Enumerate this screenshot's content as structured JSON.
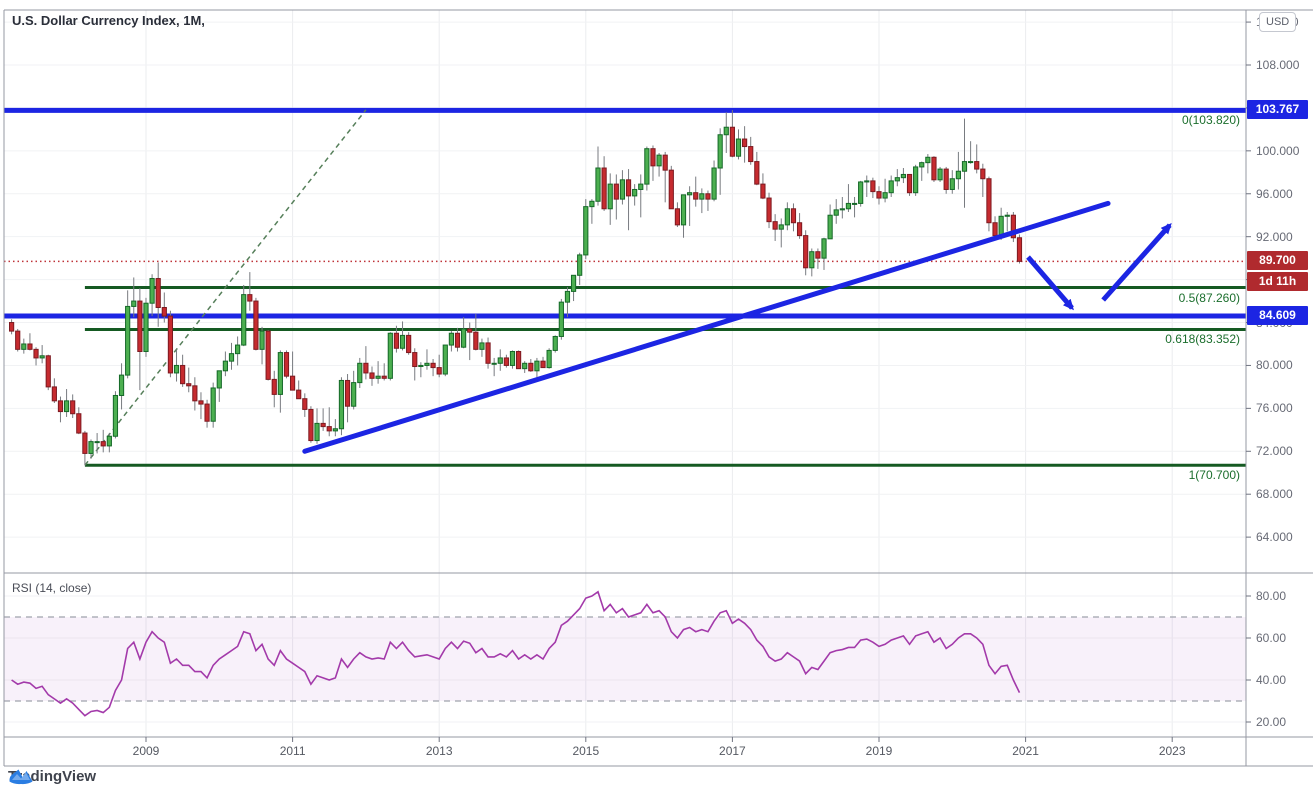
{
  "app": {
    "logo_label": "TradingView"
  },
  "chart": {
    "title": "U.S. Dollar Currency Index, 1M,"
  },
  "rsi": {
    "label": "RSI (14, close)"
  },
  "price_axis": {
    "currency_button": "USD",
    "ticks": [
      112,
      108,
      104,
      100,
      96,
      92,
      88,
      84,
      80,
      76,
      72,
      68,
      64
    ],
    "last_price_label": "89.700",
    "countdown": "1d 11h",
    "level_badges": [
      "103.767",
      "84.609"
    ]
  },
  "time_axis": {
    "tick_years": [
      2009,
      2011,
      2013,
      2015,
      2017,
      2019,
      2021,
      2023
    ]
  },
  "rsi_axis": {
    "ticks": [
      80,
      60,
      40,
      20
    ]
  },
  "colors": {
    "accent_blue": "#1c25e3",
    "badge_red": "#b02a2e",
    "last_price_red": "#bf3338",
    "bull_fill": "#4caf50",
    "bull_border": "#156928",
    "bear_fill": "#c62b2f",
    "bear_border": "#7d1a21",
    "wick": "#787b80",
    "fib_green": "#155a22",
    "dashed_trend_green": "#567f5a",
    "rsi_purple": "#a33aaa",
    "rsi_band_fill": "rgba(167,77,185,0.08)",
    "band_border_gray": "#9fa2ac",
    "grid_v": "#ebecef",
    "grid_h": "#f1f2f4",
    "frame_gray": "#9598a3",
    "tick_gray": "#6f7380",
    "logo_blue": "#2a7de2"
  },
  "chart_data": {
    "type": "candlestick",
    "title": "U.S. Dollar Currency Index",
    "interval": "1M",
    "start": "2007-03",
    "price_axis_range": [
      62,
      113
    ],
    "candles": [
      [
        84.0,
        84.3,
        82.9,
        83.2
      ],
      [
        83.2,
        83.4,
        81.3,
        81.5
      ],
      [
        81.5,
        82.5,
        81.1,
        82.0
      ],
      [
        82.0,
        83.0,
        81.4,
        81.5
      ],
      [
        81.5,
        81.7,
        80.0,
        80.7
      ],
      [
        80.7,
        81.9,
        80.2,
        80.9
      ],
      [
        80.9,
        81.0,
        77.7,
        78.0
      ],
      [
        78.0,
        78.8,
        76.5,
        76.7
      ],
      [
        76.7,
        77.1,
        74.7,
        75.7
      ],
      [
        75.7,
        77.8,
        75.2,
        76.7
      ],
      [
        76.7,
        77.3,
        75.1,
        75.5
      ],
      [
        75.5,
        76.1,
        73.6,
        73.7
      ],
      [
        73.7,
        73.9,
        70.7,
        71.8
      ],
      [
        71.8,
        73.1,
        71.3,
        72.9
      ],
      [
        72.9,
        73.7,
        71.8,
        72.9
      ],
      [
        72.9,
        74.0,
        71.9,
        72.5
      ],
      [
        72.5,
        73.7,
        71.9,
        73.4
      ],
      [
        73.4,
        77.6,
        73.2,
        77.2
      ],
      [
        77.2,
        80.2,
        75.9,
        79.1
      ],
      [
        79.1,
        87.0,
        78.8,
        85.5
      ],
      [
        85.5,
        88.2,
        84.5,
        86.0
      ],
      [
        86.0,
        87.2,
        77.7,
        81.3
      ],
      [
        81.3,
        86.3,
        80.8,
        85.8
      ],
      [
        85.8,
        88.5,
        84.6,
        88.1
      ],
      [
        88.1,
        89.6,
        83.6,
        85.4
      ],
      [
        85.4,
        86.8,
        84.0,
        84.6
      ],
      [
        84.6,
        85.1,
        78.9,
        79.3
      ],
      [
        79.3,
        81.5,
        78.5,
        80.0
      ],
      [
        80.0,
        81.0,
        78.0,
        78.3
      ],
      [
        78.3,
        79.8,
        77.5,
        78.1
      ],
      [
        78.1,
        78.9,
        75.8,
        76.7
      ],
      [
        76.7,
        77.5,
        75.0,
        76.4
      ],
      [
        76.4,
        76.8,
        74.2,
        74.8
      ],
      [
        74.8,
        78.4,
        74.2,
        77.9
      ],
      [
        77.9,
        79.5,
        76.6,
        79.5
      ],
      [
        79.5,
        81.3,
        79.0,
        80.4
      ],
      [
        80.4,
        82.1,
        79.6,
        81.1
      ],
      [
        81.1,
        82.7,
        80.0,
        81.9
      ],
      [
        81.9,
        87.5,
        81.8,
        86.6
      ],
      [
        86.6,
        88.7,
        85.1,
        86.0
      ],
      [
        86.0,
        86.3,
        81.4,
        81.5
      ],
      [
        81.5,
        83.6,
        80.1,
        83.2
      ],
      [
        83.2,
        83.3,
        78.6,
        78.7
      ],
      [
        78.7,
        79.5,
        76.1,
        77.3
      ],
      [
        77.3,
        81.4,
        75.6,
        81.2
      ],
      [
        81.2,
        81.4,
        78.8,
        79.0
      ],
      [
        79.0,
        81.3,
        77.7,
        77.7
      ],
      [
        77.7,
        78.6,
        76.9,
        76.9
      ],
      [
        76.9,
        77.4,
        75.2,
        75.9
      ],
      [
        75.9,
        76.2,
        72.8,
        73.0
      ],
      [
        73.0,
        76.0,
        72.7,
        74.6
      ],
      [
        74.6,
        76.0,
        73.9,
        74.3
      ],
      [
        74.3,
        76.1,
        73.4,
        73.9
      ],
      [
        73.9,
        75.0,
        73.4,
        74.1
      ],
      [
        74.1,
        78.9,
        73.5,
        78.6
      ],
      [
        78.6,
        79.2,
        74.7,
        76.2
      ],
      [
        76.2,
        79.5,
        75.9,
        78.4
      ],
      [
        78.4,
        80.7,
        77.9,
        80.2
      ],
      [
        80.2,
        81.8,
        78.7,
        79.3
      ],
      [
        79.3,
        79.9,
        78.1,
        78.8
      ],
      [
        78.8,
        80.4,
        78.3,
        79.0
      ],
      [
        79.0,
        80.2,
        78.6,
        78.8
      ],
      [
        78.8,
        83.1,
        78.6,
        83.0
      ],
      [
        83.0,
        83.7,
        81.2,
        81.6
      ],
      [
        81.6,
        84.1,
        81.4,
        82.8
      ],
      [
        82.8,
        83.1,
        81.0,
        81.2
      ],
      [
        81.2,
        81.6,
        78.6,
        79.9
      ],
      [
        79.9,
        80.3,
        78.9,
        80.0
      ],
      [
        80.0,
        81.5,
        79.6,
        80.2
      ],
      [
        80.2,
        80.6,
        79.0,
        79.8
      ],
      [
        79.8,
        81.0,
        78.9,
        79.2
      ],
      [
        79.2,
        81.9,
        79.0,
        81.9
      ],
      [
        81.9,
        83.2,
        81.3,
        83.0
      ],
      [
        83.0,
        83.5,
        81.3,
        81.7
      ],
      [
        81.7,
        84.5,
        81.6,
        83.4
      ],
      [
        83.4,
        84.0,
        80.5,
        83.1
      ],
      [
        83.1,
        84.8,
        81.4,
        81.5
      ],
      [
        81.5,
        82.5,
        80.8,
        82.1
      ],
      [
        82.1,
        82.6,
        79.7,
        80.2
      ],
      [
        80.2,
        80.7,
        79.0,
        80.2
      ],
      [
        80.2,
        81.5,
        79.5,
        80.7
      ],
      [
        80.7,
        81.0,
        79.8,
        80.0
      ],
      [
        80.0,
        81.4,
        79.7,
        81.3
      ],
      [
        81.3,
        81.4,
        79.7,
        79.7
      ],
      [
        79.7,
        80.4,
        79.3,
        80.2
      ],
      [
        80.2,
        80.6,
        79.4,
        79.5
      ],
      [
        79.5,
        80.7,
        78.9,
        80.4
      ],
      [
        80.4,
        80.8,
        79.8,
        79.8
      ],
      [
        79.8,
        81.6,
        79.7,
        81.4
      ],
      [
        81.4,
        82.8,
        81.2,
        82.7
      ],
      [
        82.7,
        86.2,
        82.4,
        85.9
      ],
      [
        85.9,
        87.3,
        84.5,
        86.9
      ],
      [
        86.9,
        88.4,
        86.0,
        88.4
      ],
      [
        88.4,
        90.5,
        87.5,
        90.3
      ],
      [
        90.3,
        95.5,
        89.9,
        94.8
      ],
      [
        94.8,
        95.5,
        93.2,
        95.3
      ],
      [
        95.3,
        100.4,
        94.9,
        98.4
      ],
      [
        98.4,
        99.5,
        94.4,
        94.6
      ],
      [
        94.6,
        97.9,
        93.1,
        96.9
      ],
      [
        96.9,
        97.8,
        93.6,
        95.5
      ],
      [
        95.5,
        98.2,
        95.0,
        97.3
      ],
      [
        97.3,
        98.3,
        92.6,
        95.8
      ],
      [
        95.8,
        96.9,
        94.9,
        96.4
      ],
      [
        96.4,
        97.8,
        93.8,
        96.9
      ],
      [
        96.9,
        100.4,
        96.3,
        100.2
      ],
      [
        100.2,
        100.5,
        97.2,
        98.6
      ],
      [
        98.6,
        99.8,
        97.6,
        99.6
      ],
      [
        99.6,
        99.9,
        95.2,
        98.2
      ],
      [
        98.2,
        98.6,
        94.6,
        94.6
      ],
      [
        94.6,
        95.2,
        92.9,
        93.1
      ],
      [
        93.1,
        95.9,
        91.9,
        95.9
      ],
      [
        95.9,
        96.7,
        93.0,
        96.1
      ],
      [
        96.1,
        97.6,
        94.8,
        95.5
      ],
      [
        95.5,
        96.5,
        94.2,
        96.0
      ],
      [
        96.0,
        96.3,
        94.4,
        95.5
      ],
      [
        95.5,
        99.1,
        95.3,
        98.4
      ],
      [
        98.4,
        102.1,
        95.9,
        101.5
      ],
      [
        101.5,
        103.6,
        99.8,
        102.2
      ],
      [
        102.2,
        103.8,
        99.4,
        99.5
      ],
      [
        99.5,
        102.0,
        99.2,
        101.1
      ],
      [
        101.1,
        102.3,
        98.9,
        100.4
      ],
      [
        100.4,
        101.3,
        98.7,
        99.0
      ],
      [
        99.0,
        99.9,
        96.8,
        96.9
      ],
      [
        96.9,
        97.9,
        95.5,
        95.6
      ],
      [
        95.6,
        96.1,
        92.8,
        93.4
      ],
      [
        93.4,
        94.1,
        91.6,
        92.7
      ],
      [
        92.7,
        93.7,
        91.0,
        93.1
      ],
      [
        93.1,
        95.2,
        92.6,
        94.6
      ],
      [
        94.6,
        95.1,
        92.5,
        93.3
      ],
      [
        93.3,
        94.2,
        91.8,
        92.1
      ],
      [
        92.1,
        92.6,
        88.4,
        89.1
      ],
      [
        89.1,
        90.9,
        88.3,
        90.6
      ],
      [
        90.6,
        90.9,
        89.0,
        90.0
      ],
      [
        90.0,
        91.9,
        88.9,
        91.8
      ],
      [
        91.8,
        95.0,
        91.8,
        94.0
      ],
      [
        94.0,
        95.5,
        93.2,
        94.5
      ],
      [
        94.5,
        95.7,
        93.7,
        94.6
      ],
      [
        94.6,
        96.9,
        94.3,
        95.1
      ],
      [
        95.1,
        95.7,
        93.8,
        95.1
      ],
      [
        95.1,
        97.2,
        94.8,
        97.1
      ],
      [
        97.1,
        97.7,
        95.7,
        97.2
      ],
      [
        97.2,
        97.5,
        95.6,
        96.2
      ],
      [
        96.2,
        96.7,
        95.0,
        95.6
      ],
      [
        95.6,
        97.4,
        95.2,
        96.1
      ],
      [
        96.1,
        97.7,
        95.7,
        97.2
      ],
      [
        97.2,
        98.3,
        96.7,
        97.5
      ],
      [
        97.5,
        98.4,
        97.0,
        97.8
      ],
      [
        97.8,
        97.8,
        95.8,
        96.1
      ],
      [
        96.1,
        98.7,
        95.8,
        98.5
      ],
      [
        98.5,
        99.0,
        97.2,
        98.9
      ],
      [
        98.9,
        99.7,
        97.9,
        99.4
      ],
      [
        99.4,
        99.5,
        97.1,
        97.3
      ],
      [
        97.3,
        98.5,
        97.1,
        98.3
      ],
      [
        98.3,
        98.5,
        96.0,
        96.4
      ],
      [
        96.4,
        98.2,
        96.0,
        97.4
      ],
      [
        97.4,
        99.9,
        96.4,
        98.1
      ],
      [
        98.1,
        103.0,
        94.7,
        99.0
      ],
      [
        99.0,
        100.9,
        98.8,
        99.0
      ],
      [
        99.0,
        100.6,
        97.9,
        98.3
      ],
      [
        98.3,
        98.8,
        95.7,
        97.4
      ],
      [
        97.4,
        97.6,
        92.5,
        93.3
      ],
      [
        93.3,
        93.9,
        91.7,
        92.1
      ],
      [
        92.1,
        94.7,
        91.7,
        93.9
      ],
      [
        93.9,
        94.3,
        92.5,
        94.0
      ],
      [
        94.0,
        94.3,
        91.5,
        91.9
      ],
      [
        91.9,
        92.2,
        89.5,
        89.7
      ]
    ],
    "last_price": 89.7,
    "rsi_indicator": {
      "period": 14,
      "source": "close",
      "upper_band": 70,
      "lower_band": 30,
      "range": [
        10,
        90
      ],
      "values": [
        40,
        38,
        39,
        38.5,
        36,
        37,
        33,
        31,
        29,
        31,
        29,
        26,
        23,
        25,
        25.5,
        24.5,
        27,
        35,
        40,
        55,
        58,
        50,
        58,
        63,
        60,
        58,
        48,
        50,
        47,
        47,
        44,
        44,
        41,
        47,
        50,
        52,
        54,
        56,
        63,
        62,
        54,
        57,
        50,
        47,
        54,
        50,
        48,
        46,
        44,
        38,
        42,
        41,
        40,
        41,
        50,
        46,
        50,
        53,
        51,
        50,
        50.5,
        50,
        58,
        55,
        58,
        54,
        51,
        51.5,
        52,
        51,
        50,
        55,
        58,
        55,
        58.5,
        57.5,
        53,
        55,
        51,
        51,
        52.5,
        51,
        54,
        50,
        52,
        50,
        52,
        50,
        55,
        58,
        66,
        68,
        71,
        74,
        79,
        80,
        82,
        73,
        76,
        72,
        74,
        70,
        71,
        72,
        76,
        72,
        73,
        70,
        63,
        60,
        64,
        65,
        63,
        64,
        63,
        68,
        72,
        73,
        67,
        69,
        67,
        64,
        59,
        56,
        51,
        49,
        50,
        53,
        51,
        49,
        43,
        46,
        45,
        49,
        53,
        54,
        54.5,
        55.5,
        55.5,
        59,
        59.5,
        58,
        56,
        57,
        59,
        60,
        61,
        57,
        61,
        62,
        63,
        58,
        60,
        55,
        57,
        60,
        62,
        62,
        60,
        57,
        47,
        43,
        46.5,
        47,
        40,
        34
      ]
    },
    "levels": {
      "horizontal_rays": [
        103.767,
        84.609
      ],
      "fib": [
        {
          "label": "0(103.820)",
          "price": 103.82
        },
        {
          "label": "0.5(87.260)",
          "price": 87.26
        },
        {
          "label": "0.618(83.352)",
          "price": 83.352
        },
        {
          "label": "1(70.700)",
          "price": 70.7
        }
      ],
      "fib_start_month_index": 12,
      "last_price_line": 89.7
    },
    "drawings": {
      "trendline": {
        "from": {
          "i": 48,
          "price": 72.0
        },
        "to": {
          "i": 179.5,
          "price": 95.1
        }
      },
      "dashed_fib_trend": {
        "from": {
          "i": 12,
          "price": 70.7
        },
        "to": {
          "i": 58,
          "price": 103.82
        }
      },
      "arrows": [
        {
          "from": {
            "i": 166.4,
            "price": 90.1
          },
          "to": {
            "i": 173.6,
            "price": 85.35
          }
        },
        {
          "from": {
            "i": 178.7,
            "price": 86.1
          },
          "to": {
            "i": 189.6,
            "price": 93.07
          }
        }
      ]
    }
  }
}
